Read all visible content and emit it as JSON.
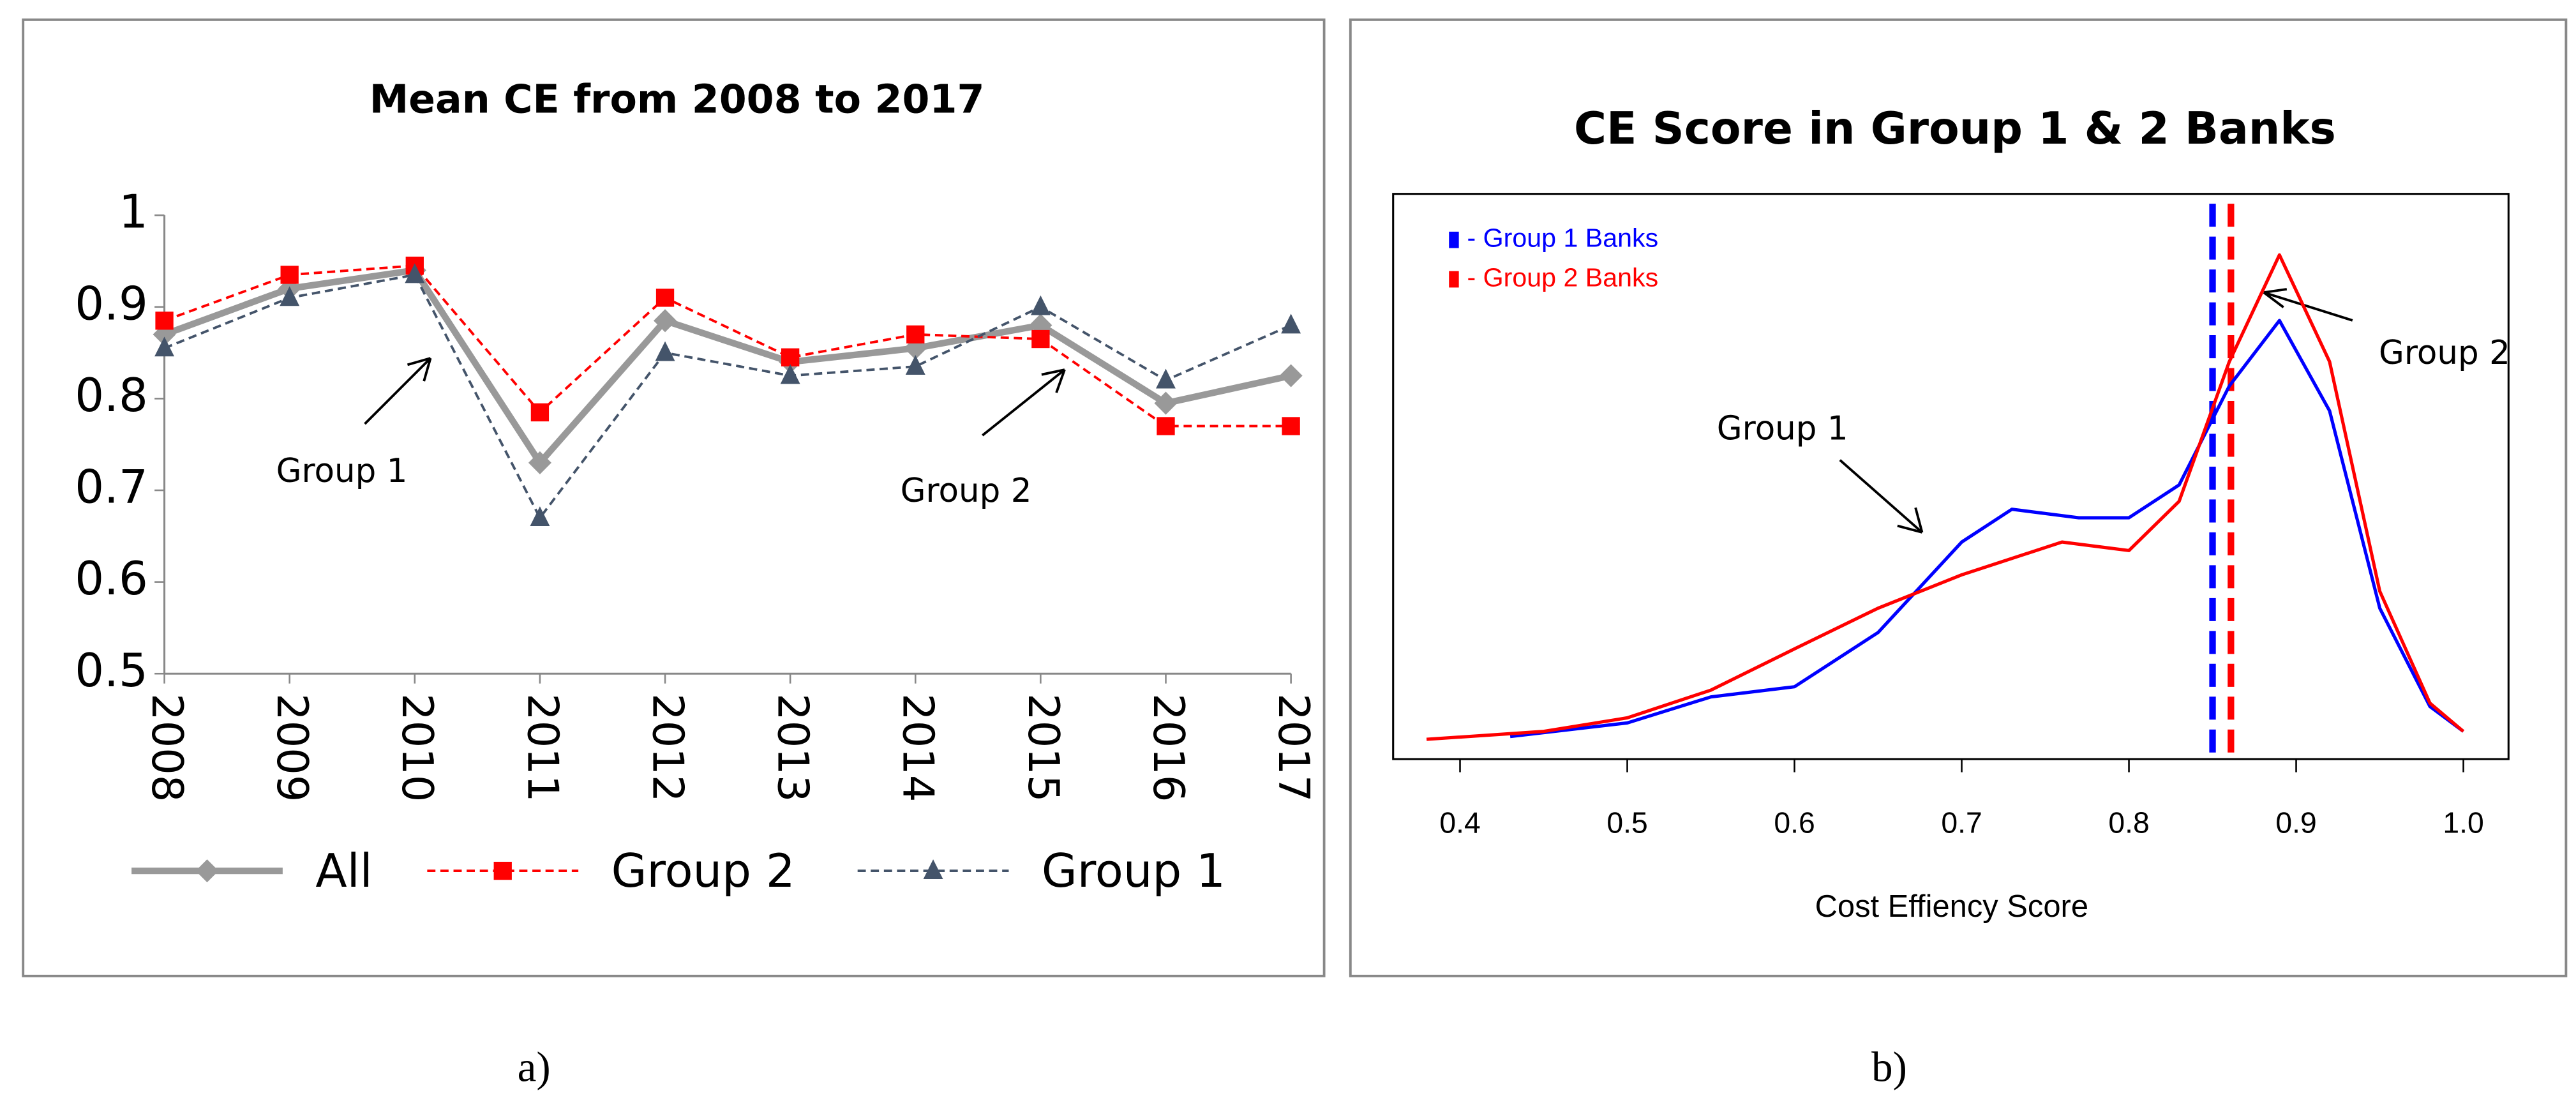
{
  "chart_data": [
    {
      "type": "line",
      "title": "Mean CE from 2008 to 2017",
      "panel_label": "a)",
      "categories": [
        "2008",
        "2009",
        "2010",
        "2011",
        "2012",
        "2013",
        "2014",
        "2015",
        "2016",
        "2017"
      ],
      "series": [
        {
          "name": "All",
          "color": "#999999",
          "marker": "diamond",
          "dashed": false,
          "values": [
            0.87,
            0.92,
            0.94,
            0.73,
            0.885,
            0.84,
            0.855,
            0.88,
            0.795,
            0.825
          ]
        },
        {
          "name": "Group 2",
          "color": "#ff0000",
          "marker": "square",
          "dashed": true,
          "values": [
            0.885,
            0.935,
            0.945,
            0.785,
            0.91,
            0.845,
            0.87,
            0.865,
            0.77,
            0.77
          ]
        },
        {
          "name": "Group 1",
          "color": "#44546a",
          "marker": "triangle",
          "dashed": true,
          "values": [
            0.855,
            0.91,
            0.935,
            0.67,
            0.85,
            0.825,
            0.835,
            0.9,
            0.82,
            0.88
          ]
        }
      ],
      "ylim": [
        0.5,
        1
      ],
      "yticks": [
        0.5,
        0.6,
        0.7,
        0.8,
        0.9,
        1
      ],
      "legend": "bottom",
      "annotations": [
        "Group 1",
        "Group 2"
      ]
    },
    {
      "type": "density",
      "title": "CE Score in Group 1 & 2 Banks",
      "panel_label": "b)",
      "xlabel": "Cost Effiency Score",
      "series": [
        {
          "name": "- Group 1 Banks",
          "color": "#0000ff",
          "x": [
            0.43,
            0.5,
            0.55,
            0.6,
            0.65,
            0.7,
            0.73,
            0.77,
            0.8,
            0.83,
            0.86,
            0.89,
            0.92,
            0.95,
            0.98,
            1.0
          ],
          "values": [
            0.04,
            0.064,
            0.11,
            0.128,
            0.224,
            0.384,
            0.442,
            0.427,
            0.427,
            0.485,
            0.66,
            0.776,
            0.616,
            0.267,
            0.093,
            0.049
          ]
        },
        {
          "name": "- Group 2 Banks",
          "color": "#ff0000",
          "x": [
            0.38,
            0.45,
            0.5,
            0.55,
            0.6,
            0.65,
            0.7,
            0.76,
            0.8,
            0.83,
            0.86,
            0.89,
            0.92,
            0.95,
            0.98,
            1.0
          ],
          "values": [
            0.035,
            0.049,
            0.073,
            0.122,
            0.195,
            0.267,
            0.326,
            0.384,
            0.369,
            0.456,
            0.703,
            0.892,
            0.703,
            0.297,
            0.099,
            0.049
          ]
        }
      ],
      "vlines": [
        {
          "x": 0.85,
          "color": "#0000ff"
        },
        {
          "x": 0.861,
          "color": "#ff0000"
        }
      ],
      "xlim": [
        0.36,
        1.027
      ],
      "ylim": [
        0,
        1
      ],
      "xticks": [
        0.4,
        0.5,
        0.6,
        0.7,
        0.8,
        0.9,
        {
          "value": 1,
          "label": "1.0"
        }
      ],
      "legend": "upper left",
      "annotations": [
        "Group 1",
        "Group 2"
      ]
    }
  ]
}
